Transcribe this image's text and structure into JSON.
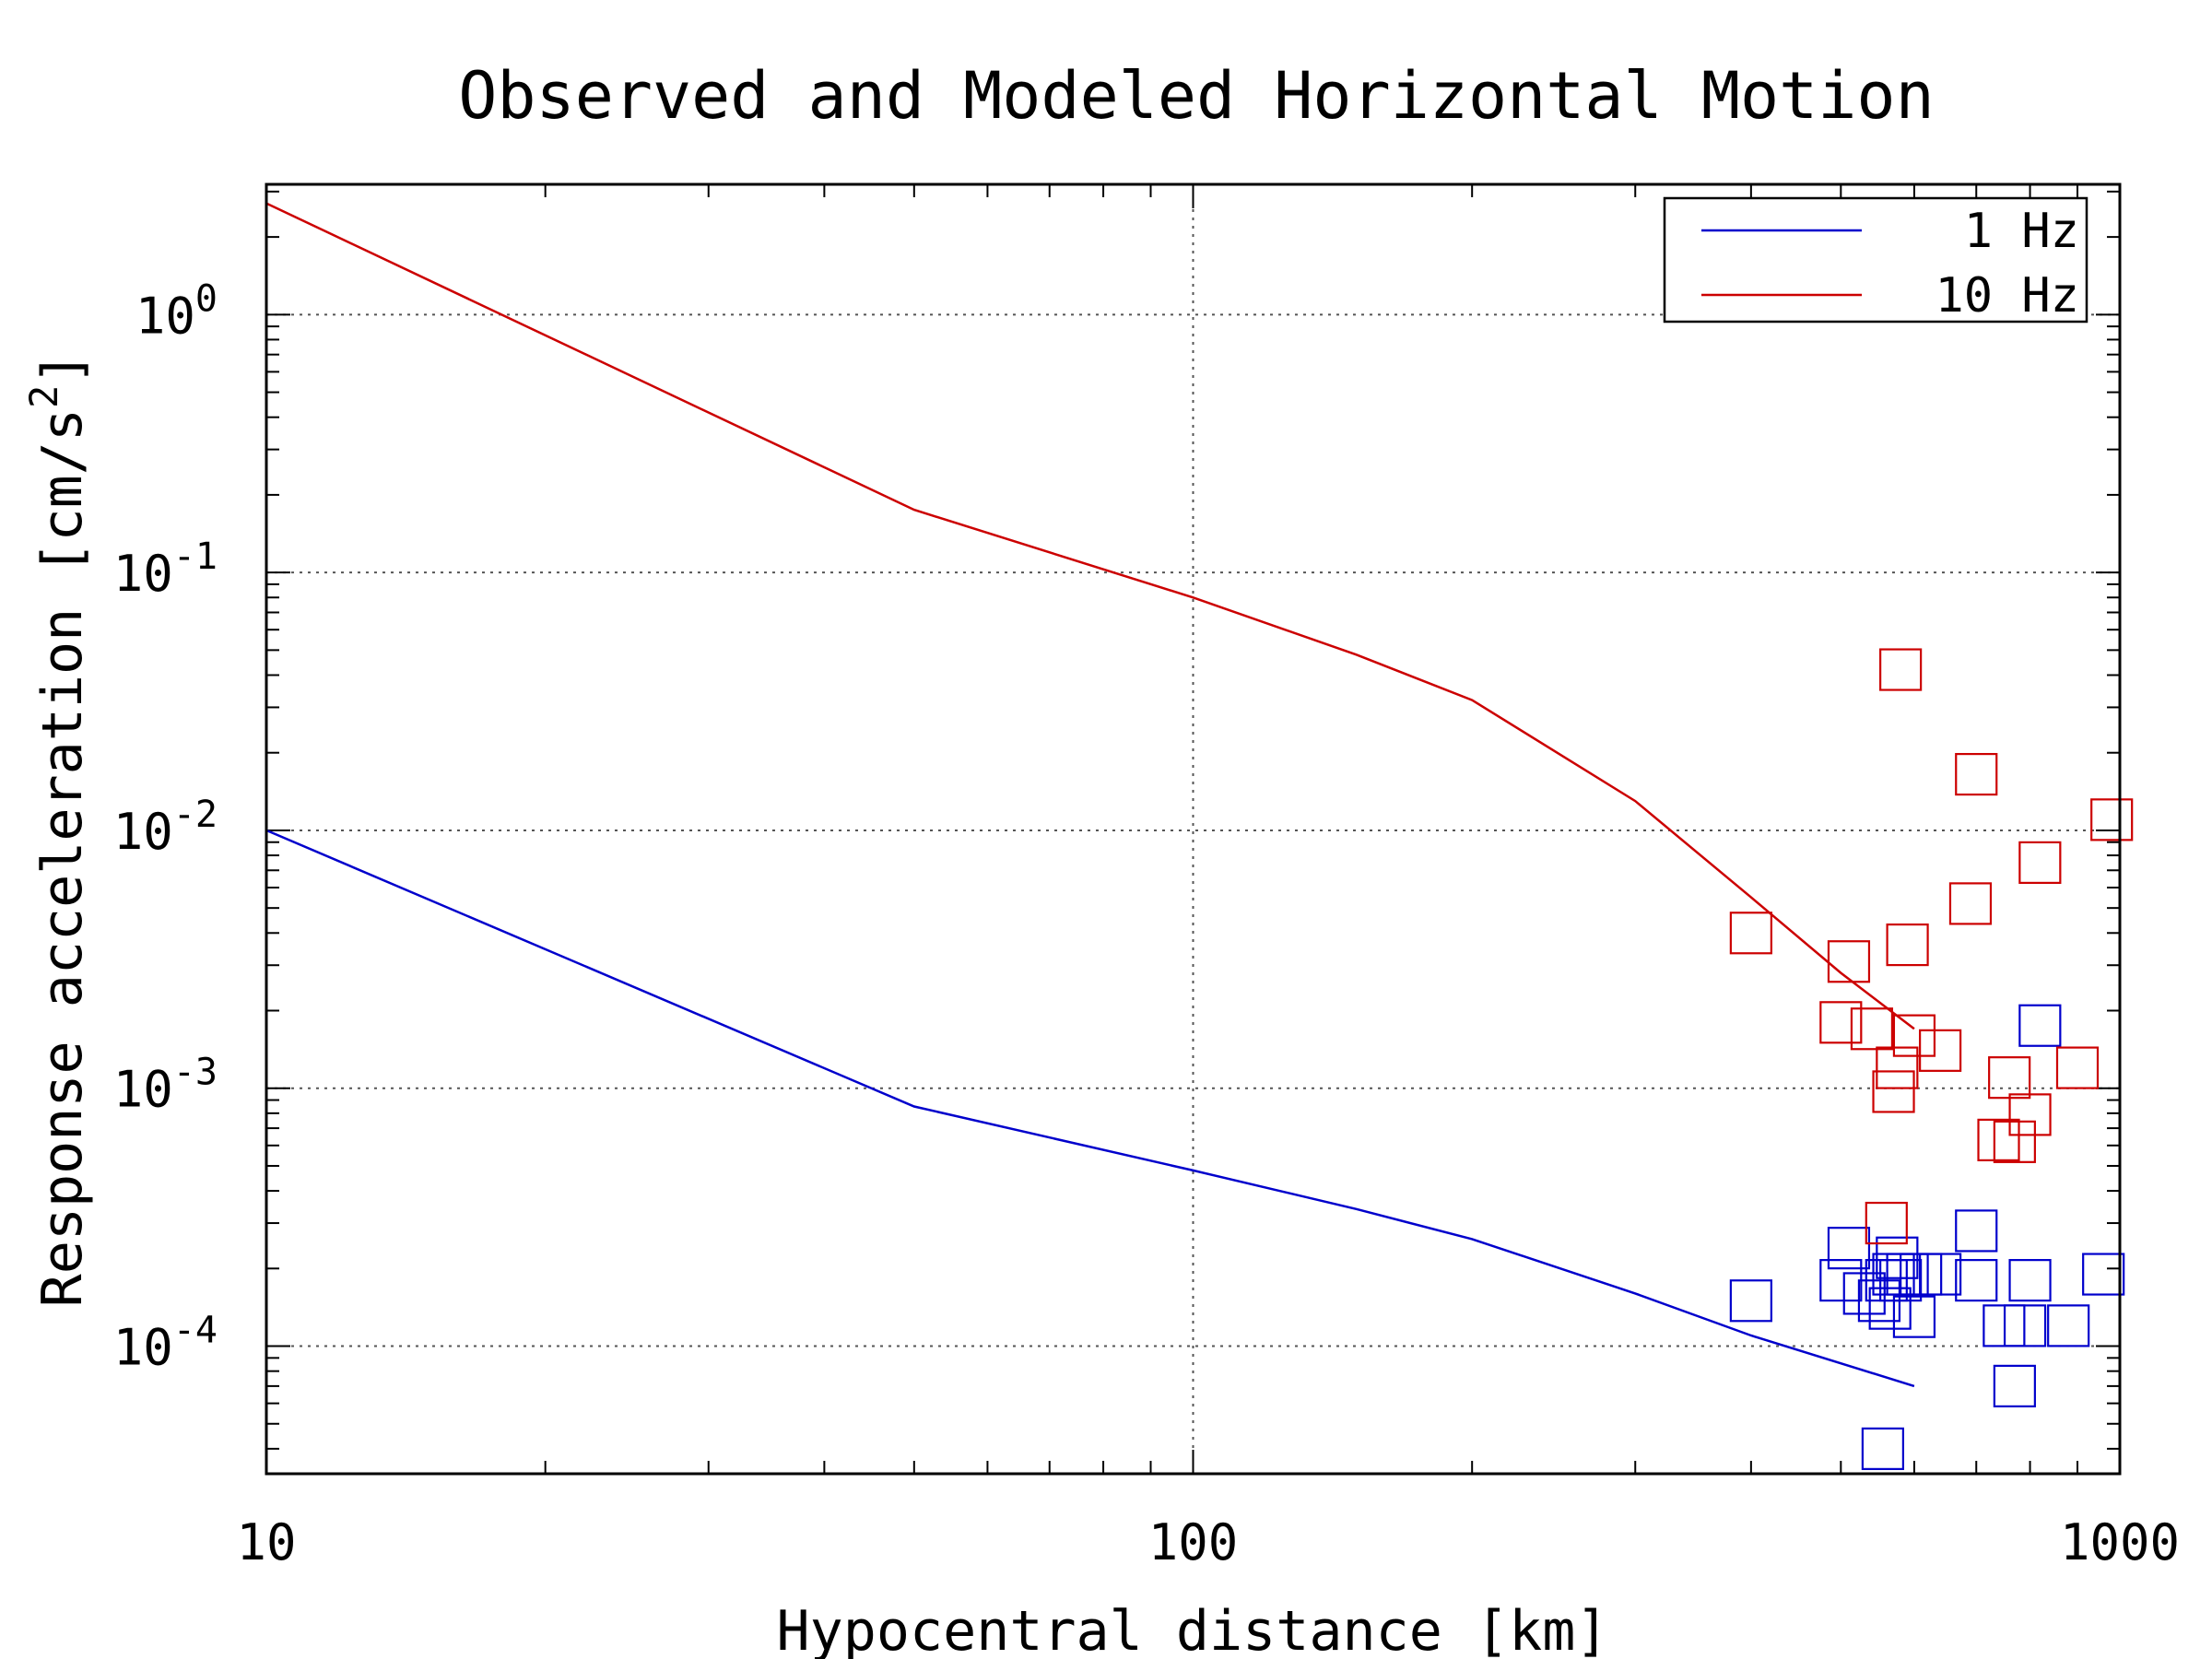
{
  "chart_data": {
    "type": "scatter",
    "title": "Observed and Modeled Horizontal Motion",
    "xlabel": "Hypocentral distance [km]",
    "ylabel_base": "Response acceleration [cm/s",
    "ylabel_sup": "2",
    "ylabel_close": "]",
    "x_scale": "log",
    "y_scale": "log",
    "xlim": [
      10,
      1000
    ],
    "ylim": [
      3.2e-05,
      3.2
    ],
    "grid": true,
    "legend_position": "top-right",
    "x_ticks": [
      {
        "value": 10,
        "label": "10"
      },
      {
        "value": 100,
        "label": "100"
      },
      {
        "value": 1000,
        "label": "1000"
      }
    ],
    "y_ticks": [
      {
        "value": 1,
        "base": "10",
        "exp": "0"
      },
      {
        "value": 0.1,
        "base": "10",
        "exp": "-1"
      },
      {
        "value": 0.01,
        "base": "10",
        "exp": "-2"
      },
      {
        "value": 0.001,
        "base": "10",
        "exp": "-3"
      },
      {
        "value": 0.0001,
        "base": "10",
        "exp": "-4"
      }
    ],
    "series": [
      {
        "name": "1 Hz",
        "color": "#0000cc",
        "model": [
          [
            10,
            0.01
          ],
          [
            50,
            0.00085
          ],
          [
            100,
            0.00048
          ],
          [
            150,
            0.00034
          ],
          [
            200,
            0.00026
          ],
          [
            300,
            0.00016
          ],
          [
            400,
            0.00011
          ],
          [
            600,
            7e-05
          ]
        ],
        "observed": [
          [
            400,
            0.00015
          ],
          [
            500,
            0.00018
          ],
          [
            510,
            0.00024
          ],
          [
            530,
            0.00016
          ],
          [
            550,
            0.00015
          ],
          [
            555,
            4e-05
          ],
          [
            560,
            0.00018
          ],
          [
            565,
            0.00014
          ],
          [
            570,
            0.00019
          ],
          [
            575,
            0.00022
          ],
          [
            580,
            0.00018
          ],
          [
            590,
            0.00019
          ],
          [
            600,
            0.00013
          ],
          [
            610,
            0.00019
          ],
          [
            640,
            0.00019
          ],
          [
            700,
            0.00028
          ],
          [
            700,
            0.00018
          ],
          [
            750,
            0.00012
          ],
          [
            770,
            7e-05
          ],
          [
            790,
            0.00012
          ],
          [
            800,
            0.00018
          ],
          [
            820,
            0.00175
          ],
          [
            880,
            0.00012
          ],
          [
            960,
            0.00019
          ]
        ]
      },
      {
        "name": "10 Hz",
        "color": "#cc0000",
        "model": [
          [
            10,
            2.7
          ],
          [
            50,
            0.175
          ],
          [
            100,
            0.08
          ],
          [
            150,
            0.048
          ],
          [
            200,
            0.032
          ],
          [
            300,
            0.013
          ],
          [
            400,
            0.0055
          ],
          [
            500,
            0.0028
          ],
          [
            600,
            0.0017
          ]
        ],
        "observed": [
          [
            400,
            0.004
          ],
          [
            500,
            0.0018
          ],
          [
            510,
            0.0031
          ],
          [
            540,
            0.0017
          ],
          [
            560,
            0.0003
          ],
          [
            570,
            0.00097
          ],
          [
            575,
            0.0012
          ],
          [
            580,
            0.042
          ],
          [
            590,
            0.0036
          ],
          [
            600,
            0.0016
          ],
          [
            640,
            0.0014
          ],
          [
            690,
            0.0052
          ],
          [
            700,
            0.0165
          ],
          [
            740,
            0.00063
          ],
          [
            760,
            0.0011
          ],
          [
            770,
            0.00062
          ],
          [
            800,
            0.00079
          ],
          [
            820,
            0.0075
          ],
          [
            900,
            0.0012
          ],
          [
            980,
            0.011
          ]
        ]
      }
    ]
  }
}
